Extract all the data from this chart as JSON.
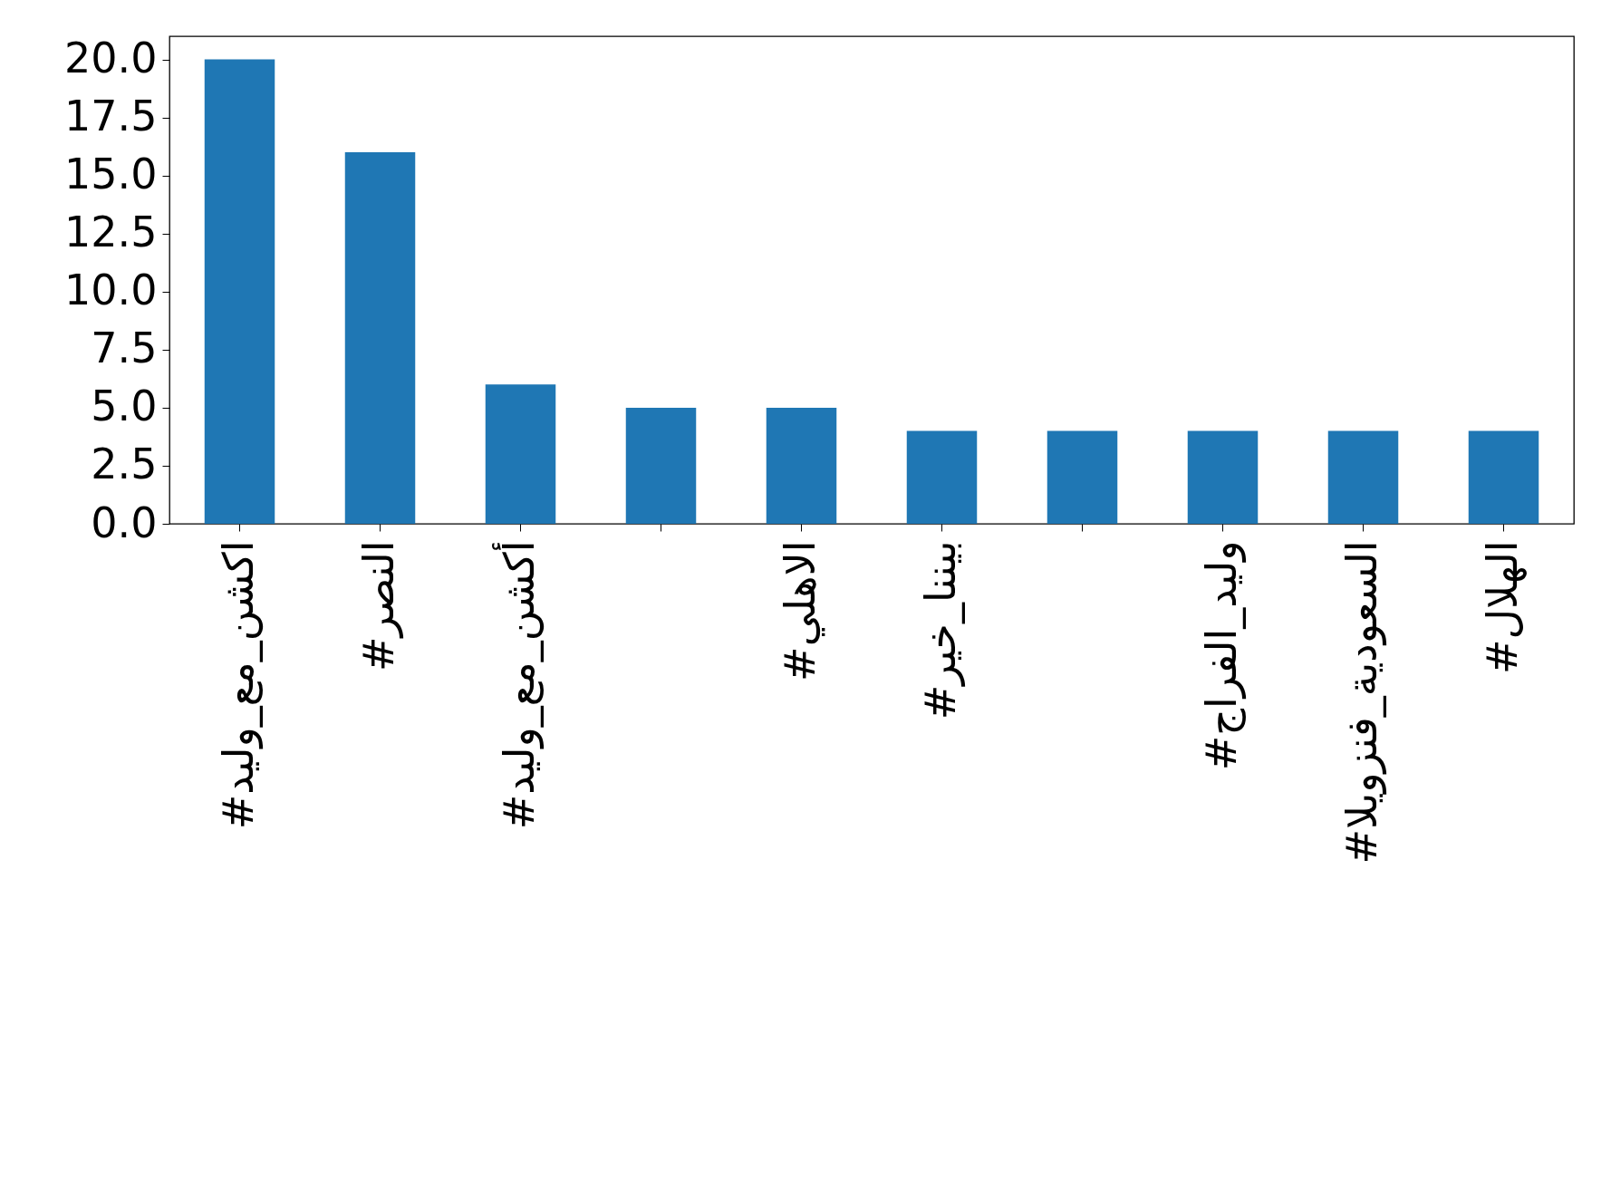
{
  "chart_data": {
    "type": "bar",
    "categories": [
      "#اكشن_مع_وليد",
      "#النصر",
      "#أكشن_مع_وليد",
      null,
      "#الاهلي",
      "#بيننا_خير",
      null,
      "#وليد_الفراج",
      "#السعودية_فنزويلا",
      "#الهلال"
    ],
    "values": [
      20,
      16,
      6,
      5,
      5,
      4,
      4,
      4,
      4,
      4
    ],
    "color": "#1f77b4",
    "ylim": [
      0,
      21
    ],
    "yticks": [
      {
        "value": 0,
        "label": "0.0"
      },
      {
        "value": 2.5,
        "label": "2.5"
      },
      {
        "value": 5,
        "label": "5.0"
      },
      {
        "value": 7.5,
        "label": "7.5"
      },
      {
        "value": 10,
        "label": "10.0"
      },
      {
        "value": 12.5,
        "label": "12.5"
      },
      {
        "value": 15,
        "label": "15.0"
      },
      {
        "value": 17.5,
        "label": "17.5"
      },
      {
        "value": 20,
        "label": "20.0"
      }
    ],
    "grid": false
  }
}
